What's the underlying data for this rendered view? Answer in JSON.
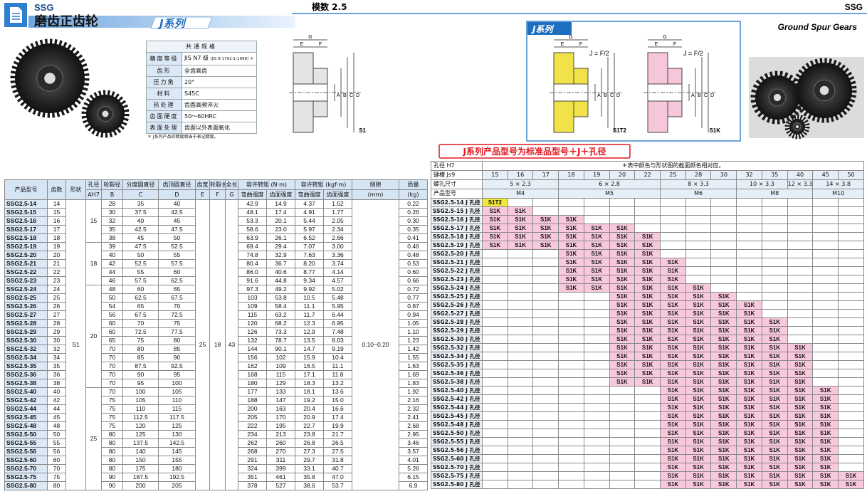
{
  "header": {
    "series_code": "SSG",
    "title": "磨齿正齿轮",
    "badge": "J系列",
    "module": "模数 2.5",
    "code_right": "SSG",
    "subtitle_en": "Ground Spur Gears"
  },
  "specs": {
    "title": "共通规格",
    "rows": [
      [
        "精度等级",
        "JIS N7 级",
        "(JIS B 1702-1:1998) ＊"
      ],
      [
        "齿形",
        "全齿高齿"
      ],
      [
        "压力角",
        "20°"
      ],
      [
        "材料",
        "S45C"
      ],
      [
        "热处理",
        "齿面高频淬火"
      ],
      [
        "齿面硬度",
        "50～60HRC"
      ],
      [
        "表面处理",
        "齿面以外表面氧化"
      ]
    ],
    "note": "＊ J系列产品的精度相当于表记精度。"
  },
  "diagrams": {
    "dims": [
      "G",
      "E",
      "F",
      "A",
      "B",
      "C",
      "D"
    ],
    "j_badge": "J系列",
    "formula": "J = F/2",
    "captions": [
      "S1",
      "S1T2",
      "S1K"
    ]
  },
  "banner": "J系列产品型号为标准品型号＋J＋孔径",
  "spec_table": {
    "head": {
      "model": "产品型号",
      "teeth": "齿数",
      "shape": "形状",
      "hole": [
        "孔径",
        "AH7"
      ],
      "hub": [
        "轮毂径",
        "B"
      ],
      "pitch": [
        "分度圆直径",
        "C"
      ],
      "tip": [
        "齿顶圆直径",
        "D"
      ],
      "width": [
        "齿宽",
        "E"
      ],
      "hub_len": [
        "轮毂长",
        "F"
      ],
      "length": [
        "全长",
        "G"
      ],
      "torque_nm": "容许转矩 (N·m)",
      "torque_kgf": "容许转矩 (kgf·m)",
      "bend": "弯曲强度",
      "surf": "齿面强度",
      "backlash": [
        "侧隙",
        "(mm)"
      ],
      "mass": [
        "质量",
        "(kg)"
      ]
    },
    "common": {
      "shape": "S1",
      "width": 25,
      "hub_len": 18,
      "length": 43,
      "backlash": "0.10~0.20"
    },
    "rows": [
      [
        "SSG2.5-14",
        14,
        15,
        28,
        35,
        40,
        42.9,
        14.9,
        4.37,
        1.52,
        0.22
      ],
      [
        "SSG2.5-15",
        15,
        15,
        30,
        37.5,
        42.5,
        48.1,
        17.4,
        4.91,
        1.77,
        0.26
      ],
      [
        "SSG2.5-16",
        16,
        15,
        32,
        40,
        45,
        53.3,
        20.1,
        5.44,
        2.05,
        "0.30"
      ],
      [
        "SSG2.5-17",
        17,
        15,
        35,
        42.5,
        47.5,
        58.6,
        "23.0",
        5.97,
        2.34,
        0.35
      ],
      [
        "SSG2.5-18",
        18,
        15,
        38,
        45,
        50,
        63.9,
        26.1,
        6.52,
        2.66,
        0.41
      ],
      [
        "SSG2.5-19",
        19,
        18,
        39,
        47.5,
        52.5,
        69.4,
        29.4,
        7.07,
        "3.00",
        0.46
      ],
      [
        "SSG2.5-20",
        20,
        18,
        40,
        50,
        55,
        74.8,
        32.9,
        7.63,
        3.36,
        0.48
      ],
      [
        "SSG2.5-21",
        21,
        18,
        42,
        52.5,
        57.5,
        80.4,
        36.7,
        "8.20",
        3.74,
        0.53
      ],
      [
        "SSG2.5-22",
        22,
        18,
        44,
        55,
        60,
        "86.0",
        40.6,
        8.77,
        4.14,
        "0.60"
      ],
      [
        "SSG2.5-23",
        23,
        18,
        46,
        57.5,
        62.5,
        91.6,
        44.8,
        9.34,
        4.57,
        0.66
      ],
      [
        "SSG2.5-24",
        24,
        20,
        48,
        60,
        65,
        97.3,
        49.2,
        9.92,
        5.02,
        0.72
      ],
      [
        "SSG2.5-25",
        25,
        20,
        50,
        62.5,
        67.5,
        103,
        53.8,
        10.5,
        5.48,
        0.77
      ],
      [
        "SSG2.5-26",
        26,
        20,
        54,
        65,
        70,
        109,
        58.4,
        11.1,
        5.95,
        0.87
      ],
      [
        "SSG2.5-27",
        27,
        20,
        56,
        67.5,
        72.5,
        115,
        63.2,
        11.7,
        6.44,
        0.94
      ],
      [
        "SSG2.5-28",
        28,
        20,
        60,
        70,
        75,
        120,
        68.2,
        12.3,
        6.95,
        1.05
      ],
      [
        "SSG2.5-29",
        29,
        20,
        60,
        72.5,
        77.5,
        126,
        73.3,
        12.9,
        7.48,
        "1.10"
      ],
      [
        "SSG2.5-30",
        30,
        20,
        65,
        75,
        80,
        132,
        78.7,
        13.5,
        8.03,
        1.23
      ],
      [
        "SSG2.5-32",
        32,
        20,
        70,
        80,
        85,
        144,
        90.1,
        14.7,
        9.19,
        1.42
      ],
      [
        "SSG2.5-34",
        34,
        20,
        70,
        85,
        90,
        156,
        102,
        15.9,
        10.4,
        1.55
      ],
      [
        "SSG2.5-35",
        35,
        20,
        70,
        87.5,
        92.5,
        162,
        109,
        16.5,
        11.1,
        1.63
      ],
      [
        "SSG2.5-36",
        36,
        20,
        70,
        90,
        95,
        168,
        115,
        17.1,
        11.8,
        1.69
      ],
      [
        "SSG2.5-38",
        38,
        20,
        70,
        95,
        100,
        180,
        129,
        18.3,
        13.2,
        1.83
      ],
      [
        "SSG2.5-40",
        40,
        25,
        70,
        100,
        105,
        177,
        133,
        18.1,
        13.6,
        1.92
      ],
      [
        "SSG2.5-42",
        42,
        25,
        75,
        105,
        110,
        188,
        147,
        19.2,
        "15.0",
        2.16
      ],
      [
        "SSG2.5-44",
        44,
        25,
        75,
        110,
        115,
        200,
        163,
        20.4,
        16.6,
        2.32
      ],
      [
        "SSG2.5-45",
        45,
        25,
        75,
        112.5,
        117.5,
        205,
        170,
        20.9,
        17.4,
        2.41
      ],
      [
        "SSG2.5-48",
        48,
        25,
        75,
        120,
        125,
        222,
        195,
        22.7,
        19.9,
        2.68
      ],
      [
        "SSG2.5-50",
        50,
        25,
        80,
        125,
        130,
        234,
        213,
        23.8,
        21.7,
        2.95
      ],
      [
        "SSG2.5-55",
        55,
        25,
        80,
        137.5,
        142.5,
        262,
        260,
        26.8,
        26.5,
        3.46
      ],
      [
        "SSG2.5-56",
        56,
        25,
        80,
        140,
        145,
        268,
        270,
        27.3,
        27.5,
        3.57
      ],
      [
        "SSG2.5-60",
        60,
        25,
        80,
        150,
        155,
        291,
        311,
        29.7,
        31.8,
        4.01
      ],
      [
        "SSG2.5-70",
        70,
        25,
        80,
        175,
        180,
        324,
        399,
        33.1,
        40.7,
        5.26
      ],
      [
        "SSG2.5-75",
        75,
        25,
        90,
        187.5,
        192.5,
        351,
        461,
        35.8,
        "47.0",
        6.15
      ],
      [
        "SSG2.5-80",
        80,
        25,
        90,
        200,
        205,
        378,
        527,
        38.6,
        53.7,
        6.9
      ]
    ]
  },
  "j_table": {
    "labels": [
      "孔径 H7",
      "键槽 Js9",
      "螺孔尺寸",
      "产品型号"
    ],
    "note": "＊表中颜色与形状图的截面颜色相对应。",
    "holes": [
      15,
      16,
      17,
      18,
      19,
      20,
      22,
      25,
      28,
      30,
      32,
      35,
      40,
      45,
      50
    ],
    "keyways": [
      "5 × 2.3",
      "5 × 2.3",
      "5 × 2.3",
      "6 × 2.8",
      "6 × 2.8",
      "6 × 2.8",
      "6 × 2.8",
      "8 × 3.3",
      "8 × 3.3",
      "8 × 3.3",
      "10 × 3.3",
      "10 × 3.3",
      "12 × 3.3",
      "14 × 3.8",
      "14 × 3.8"
    ],
    "screws": [
      "M4",
      "M4",
      "M4",
      "M5",
      "M5",
      "M5",
      "M5",
      "M6",
      "M6",
      "M6",
      "M8",
      "M8",
      "M8",
      "M10",
      "M10"
    ],
    "cell_colors": {
      "S1K": "#f8c8dc",
      "S1T2": "#f3e83a"
    },
    "rows": [
      {
        "model": "SSG2.5-14 J 孔径",
        "cells": [
          "S1T2",
          null,
          null,
          null,
          null,
          null,
          null,
          null,
          null,
          null,
          null,
          null,
          null,
          null,
          null
        ]
      },
      {
        "model": "SSG2.5-15 J 孔径",
        "cells": [
          "S1K",
          "S1K",
          null,
          null,
          null,
          null,
          null,
          null,
          null,
          null,
          null,
          null,
          null,
          null,
          null
        ]
      },
      {
        "model": "SSG2.5-16 J 孔径",
        "cells": [
          "S1K",
          "S1K",
          "S1K",
          "S1K",
          null,
          null,
          null,
          null,
          null,
          null,
          null,
          null,
          null,
          null,
          null
        ]
      },
      {
        "model": "SSG2.5-17 J 孔径",
        "cells": [
          "S1K",
          "S1K",
          "S1K",
          "S1K",
          "S1K",
          "S1K",
          null,
          null,
          null,
          null,
          null,
          null,
          null,
          null,
          null
        ]
      },
      {
        "model": "SSG2.5-18 J 孔径",
        "cells": [
          "S1K",
          "S1K",
          "S1K",
          "S1K",
          "S1K",
          "S1K",
          "S1K",
          null,
          null,
          null,
          null,
          null,
          null,
          null,
          null
        ]
      },
      {
        "model": "SSG2.5-19 J 孔径",
        "cells": [
          "S1K",
          "S1K",
          "S1K",
          "S1K",
          "S1K",
          "S1K",
          "S1K",
          null,
          null,
          null,
          null,
          null,
          null,
          null,
          null
        ]
      },
      {
        "model": "SSG2.5-20 J 孔径",
        "cells": [
          null,
          null,
          null,
          "S1K",
          "S1K",
          "S1K",
          "S1K",
          null,
          null,
          null,
          null,
          null,
          null,
          null,
          null
        ]
      },
      {
        "model": "SSG2.5-21 J 孔径",
        "cells": [
          null,
          null,
          null,
          "S1K",
          "S1K",
          "S1K",
          "S1K",
          "S1K",
          null,
          null,
          null,
          null,
          null,
          null,
          null
        ]
      },
      {
        "model": "SSG2.5-22 J 孔径",
        "cells": [
          null,
          null,
          null,
          "S1K",
          "S1K",
          "S1K",
          "S1K",
          "S1K",
          null,
          null,
          null,
          null,
          null,
          null,
          null
        ]
      },
      {
        "model": "SSG2.5-23 J 孔径",
        "cells": [
          null,
          null,
          null,
          "S1K",
          "S1K",
          "S1K",
          "S1K",
          "S1K",
          null,
          null,
          null,
          null,
          null,
          null,
          null
        ]
      },
      {
        "model": "SSG2.5-24 J 孔径",
        "cells": [
          null,
          null,
          null,
          "S1K",
          "S1K",
          "S1K",
          "S1K",
          "S1K",
          "S1K",
          null,
          null,
          null,
          null,
          null,
          null
        ]
      },
      {
        "model": "SSG2.5-25 J 孔径",
        "cells": [
          null,
          null,
          null,
          null,
          null,
          "S1K",
          "S1K",
          "S1K",
          "S1K",
          "S1K",
          null,
          null,
          null,
          null,
          null
        ]
      },
      {
        "model": "SSG2.5-26 J 孔径",
        "cells": [
          null,
          null,
          null,
          null,
          null,
          "S1K",
          "S1K",
          "S1K",
          "S1K",
          "S1K",
          "S1K",
          null,
          null,
          null,
          null
        ]
      },
      {
        "model": "SSG2.5-27 J 孔径",
        "cells": [
          null,
          null,
          null,
          null,
          null,
          "S1K",
          "S1K",
          "S1K",
          "S1K",
          "S1K",
          "S1K",
          null,
          null,
          null,
          null
        ]
      },
      {
        "model": "SSG2.5-28 J 孔径",
        "cells": [
          null,
          null,
          null,
          null,
          null,
          "S1K",
          "S1K",
          "S1K",
          "S1K",
          "S1K",
          "S1K",
          "S1K",
          null,
          null,
          null
        ]
      },
      {
        "model": "SSG2.5-29 J 孔径",
        "cells": [
          null,
          null,
          null,
          null,
          null,
          "S1K",
          "S1K",
          "S1K",
          "S1K",
          "S1K",
          "S1K",
          "S1K",
          null,
          null,
          null
        ]
      },
      {
        "model": "SSG2.5-30 J 孔径",
        "cells": [
          null,
          null,
          null,
          null,
          null,
          "S1K",
          "S1K",
          "S1K",
          "S1K",
          "S1K",
          "S1K",
          "S1K",
          null,
          null,
          null
        ]
      },
      {
        "model": "SSG2.5-32 J 孔径",
        "cells": [
          null,
          null,
          null,
          null,
          null,
          "S1K",
          "S1K",
          "S1K",
          "S1K",
          "S1K",
          "S1K",
          "S1K",
          "S1K",
          null,
          null
        ]
      },
      {
        "model": "SSG2.5-34 J 孔径",
        "cells": [
          null,
          null,
          null,
          null,
          null,
          "S1K",
          "S1K",
          "S1K",
          "S1K",
          "S1K",
          "S1K",
          "S1K",
          "S1K",
          null,
          null
        ]
      },
      {
        "model": "SSG2.5-35 J 孔径",
        "cells": [
          null,
          null,
          null,
          null,
          null,
          "S1K",
          "S1K",
          "S1K",
          "S1K",
          "S1K",
          "S1K",
          "S1K",
          "S1K",
          null,
          null
        ]
      },
      {
        "model": "SSG2.5-36 J 孔径",
        "cells": [
          null,
          null,
          null,
          null,
          null,
          "S1K",
          "S1K",
          "S1K",
          "S1K",
          "S1K",
          "S1K",
          "S1K",
          "S1K",
          null,
          null
        ]
      },
      {
        "model": "SSG2.5-38 J 孔径",
        "cells": [
          null,
          null,
          null,
          null,
          null,
          "S1K",
          "S1K",
          "S1K",
          "S1K",
          "S1K",
          "S1K",
          "S1K",
          "S1K",
          null,
          null
        ]
      },
      {
        "model": "SSG2.5-40 J 孔径",
        "cells": [
          null,
          null,
          null,
          null,
          null,
          null,
          null,
          "S1K",
          "S1K",
          "S1K",
          "S1K",
          "S1K",
          "S1K",
          "S1K",
          null
        ]
      },
      {
        "model": "SSG2.5-42 J 孔径",
        "cells": [
          null,
          null,
          null,
          null,
          null,
          null,
          null,
          "S1K",
          "S1K",
          "S1K",
          "S1K",
          "S1K",
          "S1K",
          "S1K",
          null
        ]
      },
      {
        "model": "SSG2.5-44 J 孔径",
        "cells": [
          null,
          null,
          null,
          null,
          null,
          null,
          null,
          "S1K",
          "S1K",
          "S1K",
          "S1K",
          "S1K",
          "S1K",
          "S1K",
          null
        ]
      },
      {
        "model": "SSG2.5-45 J 孔径",
        "cells": [
          null,
          null,
          null,
          null,
          null,
          null,
          null,
          "S1K",
          "S1K",
          "S1K",
          "S1K",
          "S1K",
          "S1K",
          "S1K",
          null
        ]
      },
      {
        "model": "SSG2.5-48 J 孔径",
        "cells": [
          null,
          null,
          null,
          null,
          null,
          null,
          null,
          "S1K",
          "S1K",
          "S1K",
          "S1K",
          "S1K",
          "S1K",
          "S1K",
          null
        ]
      },
      {
        "model": "SSG2.5-50 J 孔径",
        "cells": [
          null,
          null,
          null,
          null,
          null,
          null,
          null,
          "S1K",
          "S1K",
          "S1K",
          "S1K",
          "S1K",
          "S1K",
          "S1K",
          null
        ]
      },
      {
        "model": "SSG2.5-55 J 孔径",
        "cells": [
          null,
          null,
          null,
          null,
          null,
          null,
          null,
          "S1K",
          "S1K",
          "S1K",
          "S1K",
          "S1K",
          "S1K",
          "S1K",
          null
        ]
      },
      {
        "model": "SSG2.5-56 J 孔径",
        "cells": [
          null,
          null,
          null,
          null,
          null,
          null,
          null,
          "S1K",
          "S1K",
          "S1K",
          "S1K",
          "S1K",
          "S1K",
          "S1K",
          null
        ]
      },
      {
        "model": "SSG2.5-60 J 孔径",
        "cells": [
          null,
          null,
          null,
          null,
          null,
          null,
          null,
          "S1K",
          "S1K",
          "S1K",
          "S1K",
          "S1K",
          "S1K",
          "S1K",
          null
        ]
      },
      {
        "model": "SSG2.5-70 J 孔径",
        "cells": [
          null,
          null,
          null,
          null,
          null,
          null,
          null,
          "S1K",
          "S1K",
          "S1K",
          "S1K",
          "S1K",
          "S1K",
          "S1K",
          null
        ]
      },
      {
        "model": "SSG2.5-75 J 孔径",
        "cells": [
          null,
          null,
          null,
          null,
          null,
          null,
          null,
          "S1K",
          "S1K",
          "S1K",
          "S1K",
          "S1K",
          "S1K",
          "S1K",
          "S1K"
        ]
      },
      {
        "model": "SSG2.5-80 J 孔径",
        "cells": [
          null,
          null,
          null,
          null,
          null,
          null,
          null,
          "S1K",
          "S1K",
          "S1K",
          "S1K",
          "S1K",
          "S1K",
          "S1K",
          "S1K"
        ]
      }
    ]
  }
}
